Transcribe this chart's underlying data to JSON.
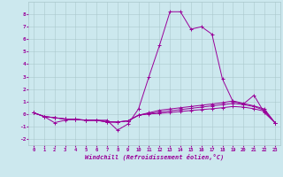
{
  "x_values": [
    0,
    1,
    2,
    3,
    4,
    5,
    6,
    7,
    8,
    9,
    10,
    11,
    12,
    13,
    14,
    15,
    16,
    17,
    18,
    19,
    20,
    21,
    22,
    23
  ],
  "lines": [
    {
      "y": [
        0.1,
        -0.2,
        -0.7,
        -0.5,
        -0.4,
        -0.5,
        -0.5,
        -0.5,
        -1.3,
        -0.8,
        0.4,
        3.0,
        5.5,
        8.2,
        8.2,
        6.8,
        7.0,
        6.4,
        2.8,
        1.0,
        0.8,
        1.5,
        0.1,
        -0.7
      ]
    },
    {
      "y": [
        0.1,
        -0.2,
        -0.3,
        -0.4,
        -0.45,
        -0.5,
        -0.5,
        -0.6,
        -0.65,
        -0.55,
        -0.1,
        0.1,
        0.3,
        0.4,
        0.5,
        0.6,
        0.7,
        0.8,
        0.9,
        1.05,
        0.85,
        0.65,
        0.4,
        -0.7
      ]
    },
    {
      "y": [
        0.1,
        -0.2,
        -0.3,
        -0.4,
        -0.45,
        -0.5,
        -0.5,
        -0.65,
        -0.65,
        -0.55,
        -0.1,
        0.05,
        0.15,
        0.25,
        0.35,
        0.45,
        0.55,
        0.65,
        0.75,
        0.85,
        0.75,
        0.6,
        0.3,
        -0.7
      ]
    },
    {
      "y": [
        0.1,
        -0.2,
        -0.3,
        -0.4,
        -0.45,
        -0.5,
        -0.5,
        -0.65,
        -0.65,
        -0.55,
        -0.1,
        0.0,
        0.05,
        0.12,
        0.2,
        0.28,
        0.35,
        0.42,
        0.5,
        0.6,
        0.55,
        0.42,
        0.22,
        -0.7
      ]
    }
  ],
  "xlabel": "Windchill (Refroidissement éolien,°C)",
  "xlim": [
    -0.5,
    23.5
  ],
  "ylim": [
    -2.5,
    9.0
  ],
  "yticks": [
    -2,
    -1,
    0,
    1,
    2,
    3,
    4,
    5,
    6,
    7,
    8
  ],
  "xticks": [
    0,
    1,
    2,
    3,
    4,
    5,
    6,
    7,
    8,
    9,
    10,
    11,
    12,
    13,
    14,
    15,
    16,
    17,
    18,
    19,
    20,
    21,
    22,
    23
  ],
  "bg_color": "#cce8ee",
  "grid_color": "#aac8cc",
  "line_color": "#990099",
  "marker": "+"
}
